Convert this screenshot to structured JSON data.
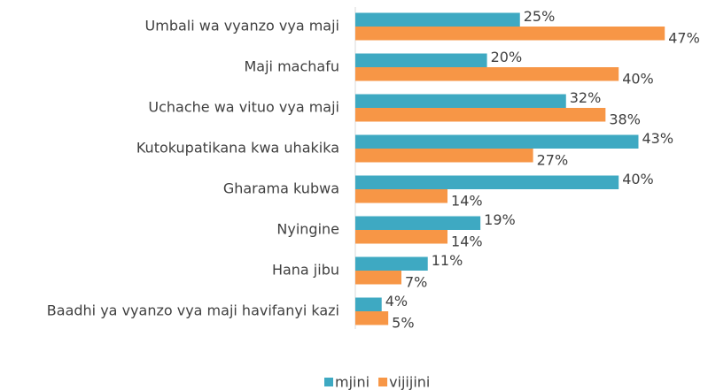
{
  "chart_data": {
    "type": "hbar",
    "categories": [
      "Umbali wa vyanzo vya maji",
      "Maji machafu",
      "Uchache wa vituo vya maji",
      "Kutokupatikana kwa uhakika",
      "Gharama kubwa",
      "Nyingine",
      "Hana jibu",
      "Baadhi ya vyanzo vya maji havifanyi kazi"
    ],
    "series": [
      {
        "name": "mjini",
        "color": "#3ea9c2",
        "values": [
          25,
          20,
          32,
          43,
          40,
          19,
          11,
          4
        ],
        "value_labels": [
          "25%",
          "20%",
          "32%",
          "43%",
          "40%",
          "19%",
          "11%",
          "4%"
        ]
      },
      {
        "name": "vijijini",
        "color": "#f79646",
        "values": [
          47,
          40,
          38,
          27,
          14,
          14,
          7,
          5
        ],
        "value_labels": [
          "47%",
          "40%",
          "38%",
          "27%",
          "14%",
          "14%",
          "7%",
          "5%"
        ]
      }
    ],
    "legend": "bottom"
  }
}
